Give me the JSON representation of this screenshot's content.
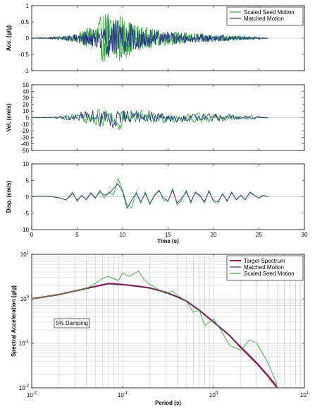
{
  "chart_data": [
    {
      "type": "line",
      "ylabel": "Acc. (g/g)",
      "xlabel": "",
      "xlim": [
        0,
        30
      ],
      "ylim": [
        -1,
        1
      ],
      "xticks": [
        0,
        5,
        10,
        15,
        20,
        25,
        30
      ],
      "yticks": [
        -1,
        -0.5,
        0,
        0.5,
        1
      ],
      "xtick_labels": [
        "",
        "",
        "",
        "",
        "",
        "",
        ""
      ],
      "ytick_labels": [
        "-1",
        "-0.5",
        "0",
        "0.5",
        "1"
      ],
      "legend": {
        "position": "top-right",
        "entries": [
          "Scaled Seed Motion",
          "Matched Motion"
        ]
      },
      "series": [
        {
          "name": "Scaled Seed Motion",
          "color": "#2db52d",
          "envelope": {
            "t": [
              0,
              2,
              4,
              5,
              6,
              7,
              8,
              8.5,
              9,
              9.5,
              10,
              11,
              12,
              13,
              14,
              15,
              17,
              19,
              21,
              23,
              25,
              26
            ],
            "amp": [
              0.01,
              0.02,
              0.08,
              0.15,
              0.3,
              0.5,
              0.8,
              0.95,
              0.92,
              0.85,
              0.7,
              0.5,
              0.38,
              0.3,
              0.26,
              0.22,
              0.18,
              0.14,
              0.1,
              0.06,
              0.03,
              0.01
            ]
          }
        },
        {
          "name": "Matched Motion",
          "color": "#2b3a8f",
          "envelope": {
            "t": [
              0,
              2,
              4,
              5,
              6,
              7,
              8,
              8.5,
              9,
              9.5,
              10,
              11,
              12,
              13,
              14,
              15,
              17,
              19,
              21,
              23,
              25,
              26
            ],
            "amp": [
              0.01,
              0.02,
              0.08,
              0.14,
              0.28,
              0.45,
              0.65,
              0.7,
              0.68,
              0.62,
              0.55,
              0.42,
              0.33,
              0.27,
              0.23,
              0.2,
              0.16,
              0.13,
              0.1,
              0.06,
              0.03,
              0.01
            ]
          }
        }
      ]
    },
    {
      "type": "line",
      "ylabel": "Vel. (cm/s)",
      "xlabel": "",
      "xlim": [
        0,
        30
      ],
      "ylim": [
        -50,
        50
      ],
      "xticks": [
        0,
        5,
        10,
        15,
        20,
        25,
        30
      ],
      "yticks": [
        -50,
        -40,
        -30,
        -20,
        -10,
        0,
        10,
        20,
        30,
        40,
        50
      ],
      "xtick_labels": [
        "",
        "",
        "",
        "",
        "",
        "",
        ""
      ],
      "ytick_labels": [
        "-50",
        "-40",
        "-30",
        "-20",
        "-10",
        "0",
        "10",
        "20",
        "30",
        "40",
        "50"
      ],
      "series": [
        {
          "name": "Scaled Seed Motion",
          "color": "#2db52d",
          "envelope": {
            "t": [
              0,
              2,
              3,
              4,
              5,
              6,
              7,
              8,
              9,
              10,
              11,
              12,
              13,
              14,
              15,
              16,
              18,
              20,
              22,
              24,
              25,
              26
            ],
            "amp": [
              0.5,
              1,
              3,
              6,
              10,
              14,
              18,
              22,
              25,
              24,
              20,
              16,
              14,
              13,
              12,
              11,
              10,
              9,
              7,
              5,
              3,
              1
            ]
          }
        },
        {
          "name": "Matched Motion",
          "color": "#2b3a8f",
          "envelope": {
            "t": [
              0,
              2,
              3,
              4,
              5,
              6,
              7,
              8,
              9,
              10,
              11,
              12,
              13,
              14,
              15,
              16,
              18,
              20,
              22,
              24,
              25,
              26
            ],
            "amp": [
              0.5,
              1,
              3,
              6,
              10,
              15,
              19,
              21,
              23,
              22,
              19,
              15,
              13,
              12,
              11,
              10,
              9,
              8,
              6,
              4,
              2,
              1
            ]
          }
        }
      ]
    },
    {
      "type": "line",
      "ylabel": "Disp. (cm/s)",
      "xlabel": "Time (s)",
      "xlim": [
        0,
        30
      ],
      "ylim": [
        -10,
        10
      ],
      "xticks": [
        0,
        5,
        10,
        15,
        20,
        25,
        30
      ],
      "yticks": [
        -10,
        -5,
        0,
        5,
        10
      ],
      "xtick_labels": [
        "0",
        "5",
        "10",
        "15",
        "20",
        "25",
        "30"
      ],
      "ytick_labels": [
        "-10",
        "-5",
        "0",
        "5",
        "10"
      ],
      "series": [
        {
          "name": "Scaled Seed Motion",
          "color": "#2db52d",
          "x": [
            0,
            1,
            2,
            3,
            3.8,
            4.5,
            5,
            5.5,
            6,
            6.5,
            7,
            7.5,
            8,
            8.5,
            9,
            9.5,
            10,
            10.5,
            11,
            11.5,
            12,
            12.5,
            13,
            13.5,
            14,
            14.5,
            15,
            15.5,
            16,
            16.5,
            17,
            17.5,
            18,
            18.5,
            19,
            19.5,
            20,
            20.5,
            21,
            21.5,
            22,
            22.5,
            23,
            23.5,
            24,
            24.5,
            25,
            25.5,
            26
          ],
          "y": [
            0,
            0.2,
            0.1,
            -0.3,
            -1,
            1.5,
            -1.5,
            0.5,
            -1,
            1,
            -0.5,
            2,
            -0.5,
            1.5,
            0.5,
            5.5,
            2,
            -2.5,
            -3.5,
            1.5,
            -2,
            1.5,
            -2.5,
            0.5,
            2,
            -1,
            -1.5,
            2.5,
            -2.5,
            -1,
            2,
            -2,
            1.5,
            0.5,
            -2,
            2,
            -1.5,
            -2,
            1,
            -1.5,
            1.5,
            -1,
            0.5,
            -1,
            1.5,
            0.5,
            -0.5,
            0.5,
            0
          ]
        },
        {
          "name": "Matched Motion",
          "color": "#2b3a8f",
          "x": [
            0,
            1,
            2,
            3,
            3.8,
            4.5,
            5,
            5.5,
            6,
            6.5,
            7,
            7.5,
            8,
            8.5,
            9,
            9.5,
            10,
            10.5,
            11,
            11.5,
            12,
            12.5,
            13,
            13.5,
            14,
            14.5,
            15,
            15.5,
            16,
            16.5,
            17,
            17.5,
            18,
            18.5,
            19,
            19.5,
            20,
            20.5,
            21,
            21.5,
            22,
            22.5,
            23,
            23.5,
            24,
            24.5,
            25,
            25.5,
            26
          ],
          "y": [
            0,
            0.2,
            0.1,
            -0.3,
            -1,
            1,
            -1,
            0.3,
            -0.8,
            1.2,
            -0.3,
            1.5,
            0.5,
            1,
            2.5,
            4,
            1.5,
            -3.5,
            -1,
            1,
            -1.5,
            1,
            -2,
            0.3,
            1.8,
            -0.5,
            -1.2,
            2,
            -2,
            -0.5,
            1.5,
            -1.5,
            1.2,
            0.3,
            -1.5,
            1.6,
            -1.2,
            -1.5,
            0.8,
            -1.2,
            1.2,
            -0.8,
            0.4,
            -0.8,
            1.3,
            0.4,
            -0.4,
            0.4,
            0
          ]
        }
      ]
    },
    {
      "type": "line",
      "scale": "log-log",
      "ylabel": "Spectral Acceleration (g/g)",
      "xlabel": "Period (s)",
      "xlim": [
        0.01,
        10
      ],
      "ylim": [
        0.01,
        10
      ],
      "xticks": [
        0.01,
        0.1,
        1,
        10
      ],
      "yticks": [
        0.01,
        0.1,
        1,
        10
      ],
      "xtick_labels": [
        {
          "base": "10",
          "exp": "-2"
        },
        {
          "base": "10",
          "exp": "-1"
        },
        {
          "base": "10",
          "exp": "0"
        },
        {
          "base": "10",
          "exp": "1"
        }
      ],
      "ytick_labels": [
        {
          "base": "10",
          "exp": "-2"
        },
        {
          "base": "10",
          "exp": "-1"
        },
        {
          "base": "10",
          "exp": "0"
        },
        {
          "base": "10",
          "exp": "1"
        }
      ],
      "grid": true,
      "annotation": "5% Damping",
      "legend": {
        "position": "top-right",
        "entries": [
          "Target Spectrum",
          "Matched Motion",
          "Scaled Seed Motion"
        ]
      },
      "series": [
        {
          "name": "Target Spectrum",
          "color": "#c0143c",
          "x": [
            0.01,
            0.02,
            0.03,
            0.05,
            0.07,
            0.1,
            0.15,
            0.2,
            0.3,
            0.4,
            0.5,
            0.7,
            1,
            1.5,
            2,
            3,
            4,
            5
          ],
          "y": [
            1,
            1.25,
            1.5,
            1.9,
            2.2,
            2.1,
            1.9,
            1.75,
            1.4,
            1.1,
            0.9,
            0.55,
            0.3,
            0.15,
            0.08,
            0.035,
            0.018,
            0.01
          ]
        },
        {
          "name": "Matched Motion",
          "color": "#2b3a8f",
          "x": [
            0.01,
            0.02,
            0.03,
            0.05,
            0.07,
            0.1,
            0.15,
            0.2,
            0.3,
            0.4,
            0.5,
            0.7,
            1,
            1.5,
            2,
            3,
            4,
            5
          ],
          "y": [
            1,
            1.24,
            1.48,
            1.85,
            2.15,
            2.05,
            1.88,
            1.72,
            1.38,
            1.12,
            0.88,
            0.56,
            0.31,
            0.15,
            0.085,
            0.037,
            0.019,
            0.011
          ]
        },
        {
          "name": "Scaled Seed Motion",
          "color": "#2db52d",
          "x": [
            0.01,
            0.02,
            0.03,
            0.04,
            0.05,
            0.06,
            0.07,
            0.08,
            0.09,
            0.1,
            0.11,
            0.12,
            0.13,
            0.15,
            0.17,
            0.2,
            0.25,
            0.3,
            0.35,
            0.4,
            0.5,
            0.6,
            0.7,
            0.8,
            1,
            1.2,
            1.5,
            2,
            2.5,
            3,
            4,
            5
          ],
          "y": [
            1,
            1.25,
            1.5,
            1.7,
            2.2,
            2.9,
            3.2,
            2.8,
            2.6,
            3.8,
            3.4,
            3.2,
            3.6,
            4.2,
            2.8,
            2.1,
            1.6,
            1.3,
            1.5,
            1.2,
            0.9,
            0.5,
            0.55,
            0.25,
            0.35,
            0.2,
            0.09,
            0.07,
            0.12,
            0.1,
            0.035,
            0.012
          ]
        }
      ]
    }
  ]
}
